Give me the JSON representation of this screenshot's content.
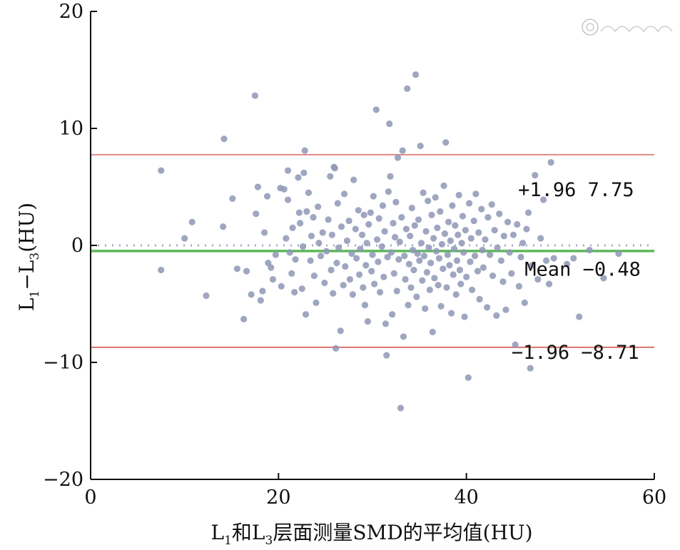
{
  "chart_data": {
    "type": "scatter",
    "title": "",
    "xlabel": {
      "base": "L",
      "sub1": "1",
      "mid": "和L",
      "sub2": "3",
      "tail": "层面测量SMD的平均值(HU)"
    },
    "ylabel": {
      "base": "L",
      "sub1": "1",
      "dash": "−L",
      "sub2": "3",
      "tail": "(HU)"
    },
    "xlim": [
      0,
      60
    ],
    "ylim": [
      -20,
      20
    ],
    "x_ticks": [
      0,
      20,
      40,
      60
    ],
    "y_ticks": [
      20,
      10,
      0,
      -10,
      -20
    ],
    "x_tick_labels": [
      "0",
      "20",
      "40",
      "60"
    ],
    "y_tick_labels": [
      "20",
      "10",
      "0",
      "−10",
      "−20"
    ],
    "grid": false,
    "point_color": "#8e97b5",
    "reference_lines": [
      {
        "y": 7.75,
        "color": "#e08a8a",
        "style": "solid"
      },
      {
        "y": -0.48,
        "color": "#5cb85c",
        "style": "solid"
      },
      {
        "y": 0,
        "color": "#a9a9c8",
        "style": "dotted"
      },
      {
        "y": -8.71,
        "color": "#d9736f",
        "style": "solid"
      }
    ],
    "annotations": [
      {
        "text": "+1.96 7.75",
        "x": 45.5,
        "y": 4.2
      },
      {
        "text": "Mean −0.48",
        "x": 46.2,
        "y": -2.6
      },
      {
        "text": "−1.96 −8.71",
        "x": 44.8,
        "y": -9.7
      }
    ],
    "points": [
      [
        7.5,
        6.4
      ],
      [
        7.5,
        -2.1
      ],
      [
        10,
        0.6
      ],
      [
        10.8,
        2
      ],
      [
        12.3,
        -4.3
      ],
      [
        14.2,
        9.1
      ],
      [
        14.1,
        1.6
      ],
      [
        15.1,
        4
      ],
      [
        15.6,
        -2
      ],
      [
        16.3,
        -6.3
      ],
      [
        16.6,
        -2.2
      ],
      [
        17.1,
        -4.2
      ],
      [
        17.5,
        12.8
      ],
      [
        17.6,
        2.7
      ],
      [
        17.8,
        5
      ],
      [
        18.1,
        -4.7
      ],
      [
        18.3,
        -3.9
      ],
      [
        18.5,
        1.1
      ],
      [
        18.8,
        4.2
      ],
      [
        18.9,
        -1.5
      ],
      [
        19.2,
        -1.9
      ],
      [
        19.4,
        -2.9
      ],
      [
        19.7,
        -0.8
      ],
      [
        20.2,
        4.9
      ],
      [
        20.3,
        -3.5
      ],
      [
        20.6,
        4.8
      ],
      [
        20.8,
        0.6
      ],
      [
        21,
        6.4
      ],
      [
        21,
        3.9
      ],
      [
        21.2,
        -0.6
      ],
      [
        21.4,
        -2.4
      ],
      [
        21.5,
        1.5
      ],
      [
        21.7,
        -4
      ],
      [
        21.8,
        -1.2
      ],
      [
        22.1,
        5.8
      ],
      [
        22.2,
        2.8
      ],
      [
        22.3,
        1.9
      ],
      [
        22.5,
        -3.7
      ],
      [
        22.6,
        -0.1
      ],
      [
        22.7,
        6.2
      ],
      [
        22.8,
        8.1
      ],
      [
        22.9,
        -5.9
      ],
      [
        23,
        2.9
      ],
      [
        23.2,
        4.5
      ],
      [
        23.4,
        -1.3
      ],
      [
        23.5,
        0.8
      ],
      [
        23.7,
        2.4
      ],
      [
        23.8,
        -2.6
      ],
      [
        24,
        -4.9
      ],
      [
        24.2,
        3.3
      ],
      [
        24.3,
        0.2
      ],
      [
        24.5,
        -0.9
      ],
      [
        24.7,
        1.1
      ],
      [
        24.9,
        -3.2
      ],
      [
        25.1,
        -0.5
      ],
      [
        25.3,
        2.2
      ],
      [
        25.5,
        5.9
      ],
      [
        25.6,
        -2.1
      ],
      [
        25.7,
        0.9
      ],
      [
        25.8,
        -4.1
      ],
      [
        25.9,
        6.7
      ],
      [
        26,
        6.6
      ],
      [
        26.1,
        -8.8
      ],
      [
        26.2,
        -1.5
      ],
      [
        26.3,
        3.6
      ],
      [
        26.4,
        -0.2
      ],
      [
        26.6,
        -7.3
      ],
      [
        26.7,
        1.6
      ],
      [
        26.9,
        -3.4
      ],
      [
        27,
        4.4
      ],
      [
        27.1,
        -1.8
      ],
      [
        27.3,
        0.4
      ],
      [
        27.5,
        2.1
      ],
      [
        27.6,
        -2.9
      ],
      [
        27.8,
        -0.7
      ],
      [
        27.9,
        -4.2
      ],
      [
        28,
        5.6
      ],
      [
        28.2,
        1.4
      ],
      [
        28.3,
        -1.1
      ],
      [
        28.5,
        3
      ],
      [
        28.6,
        -2.5
      ],
      [
        28.7,
        -0.3
      ],
      [
        28.9,
        0.9
      ],
      [
        29,
        -3.6
      ],
      [
        29.1,
        2.6
      ],
      [
        29.2,
        -5.1
      ],
      [
        29.3,
        -1.7
      ],
      [
        29.4,
        0.2
      ],
      [
        29.5,
        -6.5
      ],
      [
        29.6,
        1.8
      ],
      [
        29.8,
        2.8
      ],
      [
        29.9,
        -2.2
      ],
      [
        30,
        -0.8
      ],
      [
        30.1,
        4.2
      ],
      [
        30.2,
        -3.3
      ],
      [
        30.4,
        11.6
      ],
      [
        30.5,
        0.5
      ],
      [
        30.6,
        -1.4
      ],
      [
        30.7,
        2.3
      ],
      [
        30.8,
        -4
      ],
      [
        31,
        -0.1
      ],
      [
        31.1,
        3.4
      ],
      [
        31.2,
        -2.7
      ],
      [
        31.3,
        1.2
      ],
      [
        31.4,
        -6.7
      ],
      [
        31.5,
        -9.4
      ],
      [
        31.6,
        -1
      ],
      [
        31.7,
        4.6
      ],
      [
        31.8,
        10.4
      ],
      [
        31.9,
        5.9
      ],
      [
        32,
        -0.6
      ],
      [
        32.1,
        -5.9
      ],
      [
        32.2,
        1.9
      ],
      [
        32.3,
        -2.4
      ],
      [
        32.4,
        0.7
      ],
      [
        32.5,
        3.7
      ],
      [
        32.6,
        -3.9
      ],
      [
        32.7,
        7.5
      ],
      [
        32.8,
        -1.2
      ],
      [
        32.9,
        0.3
      ],
      [
        33,
        -13.9
      ],
      [
        33.1,
        2.4
      ],
      [
        33.2,
        8.1
      ],
      [
        33.3,
        -7.8
      ],
      [
        33.4,
        -0.9
      ],
      [
        33.5,
        -2.9
      ],
      [
        33.6,
        1.4
      ],
      [
        33.7,
        13.4
      ],
      [
        33.8,
        -5.1
      ],
      [
        33.9,
        -1.6
      ],
      [
        34,
        0.8
      ],
      [
        34.1,
        -3.6
      ],
      [
        34.2,
        3.2
      ],
      [
        34.3,
        -0.4
      ],
      [
        34.4,
        -2.1
      ],
      [
        34.5,
        1.7
      ],
      [
        34.6,
        14.6
      ],
      [
        34.7,
        -4.4
      ],
      [
        34.8,
        -0.7
      ],
      [
        34.9,
        2.2
      ],
      [
        35,
        -1.3
      ],
      [
        35.1,
        8.5
      ],
      [
        35.2,
        0.2
      ],
      [
        35.3,
        -3
      ],
      [
        35.4,
        4.5
      ],
      [
        35.5,
        -0.9
      ],
      [
        35.6,
        -5.4
      ],
      [
        35.7,
        1.2
      ],
      [
        35.8,
        -2.3
      ],
      [
        35.9,
        3.8
      ],
      [
        36,
        -0.2
      ],
      [
        36.1,
        -3.8
      ],
      [
        36.2,
        -1.5
      ],
      [
        36.3,
        2.6
      ],
      [
        36.4,
        -7.4
      ],
      [
        36.5,
        0.6
      ],
      [
        36.6,
        -2.8
      ],
      [
        36.7,
        4.1
      ],
      [
        36.8,
        -0.5
      ],
      [
        36.9,
        1.5
      ],
      [
        37,
        -3.4
      ],
      [
        37.1,
        -1.1
      ],
      [
        37.2,
        2.9
      ],
      [
        37.3,
        -5.2
      ],
      [
        37.4,
        0.1
      ],
      [
        37.5,
        -2
      ],
      [
        37.6,
        5.1
      ],
      [
        37.7,
        1
      ],
      [
        37.8,
        8.8
      ],
      [
        37.9,
        -3.6
      ],
      [
        38,
        -0.8
      ],
      [
        38.1,
        2
      ],
      [
        38.2,
        -1.7
      ],
      [
        38.3,
        0.4
      ],
      [
        38.4,
        -5.8
      ],
      [
        38.5,
        3.4
      ],
      [
        38.6,
        -2.5
      ],
      [
        38.7,
        -0.3
      ],
      [
        38.8,
        1.7
      ],
      [
        38.9,
        -4.2
      ],
      [
        39,
        -1.3
      ],
      [
        39.1,
        0.9
      ],
      [
        39.2,
        4.3
      ],
      [
        39.3,
        -2.1
      ],
      [
        39.4,
        -3.3
      ],
      [
        39.5,
        0.2
      ],
      [
        39.6,
        2.5
      ],
      [
        39.7,
        -0.6
      ],
      [
        39.8,
        -6.1
      ],
      [
        39.9,
        1.3
      ],
      [
        40,
        -2.7
      ],
      [
        40.2,
        -11.3
      ],
      [
        40.3,
        3.6
      ],
      [
        40.4,
        -1.4
      ],
      [
        40.5,
        0.6
      ],
      [
        40.6,
        -3.8
      ],
      [
        40.8,
        2.1
      ],
      [
        40.9,
        -0.9
      ],
      [
        41,
        4.4
      ],
      [
        41.2,
        -2.2
      ],
      [
        41.3,
        1.1
      ],
      [
        41.4,
        -4.6
      ],
      [
        41.6,
        3.1
      ],
      [
        41.7,
        -0.4
      ],
      [
        41.8,
        -1.9
      ],
      [
        42,
        0.5
      ],
      [
        42.2,
        -5.3
      ],
      [
        42.3,
        2.4
      ],
      [
        42.5,
        -0.8
      ],
      [
        42.7,
        3.5
      ],
      [
        42.8,
        -2.6
      ],
      [
        43,
        1.3
      ],
      [
        43.2,
        -6
      ],
      [
        43.3,
        -0.2
      ],
      [
        43.5,
        2.7
      ],
      [
        43.7,
        -1.3
      ],
      [
        43.9,
        -3.1
      ],
      [
        44,
        0.8
      ],
      [
        44.2,
        -5.5
      ],
      [
        44.4,
        2
      ],
      [
        44.6,
        -0.6
      ],
      [
        44.8,
        -2.4
      ],
      [
        45,
        0.9
      ],
      [
        45.2,
        -8.5
      ],
      [
        45.4,
        1.8
      ],
      [
        45.6,
        -3.5
      ],
      [
        45.8,
        -1
      ],
      [
        46,
        0.2
      ],
      [
        46.2,
        -4.9
      ],
      [
        46.4,
        1.4
      ],
      [
        46.6,
        2.8
      ],
      [
        46.8,
        -10.5
      ],
      [
        47,
        -1.7
      ],
      [
        47.3,
        6
      ],
      [
        47.6,
        -2.9
      ],
      [
        47.9,
        0.6
      ],
      [
        48.2,
        3.9
      ],
      [
        48.5,
        -1.3
      ],
      [
        48.8,
        -3.3
      ],
      [
        49,
        7.1
      ],
      [
        49.3,
        -1.1
      ],
      [
        50.7,
        -1.6
      ],
      [
        51.4,
        -1.1
      ],
      [
        52,
        -6.1
      ],
      [
        53.1,
        -0.4
      ],
      [
        54.6,
        -2.8
      ],
      [
        56.2,
        -0.7
      ]
    ]
  }
}
